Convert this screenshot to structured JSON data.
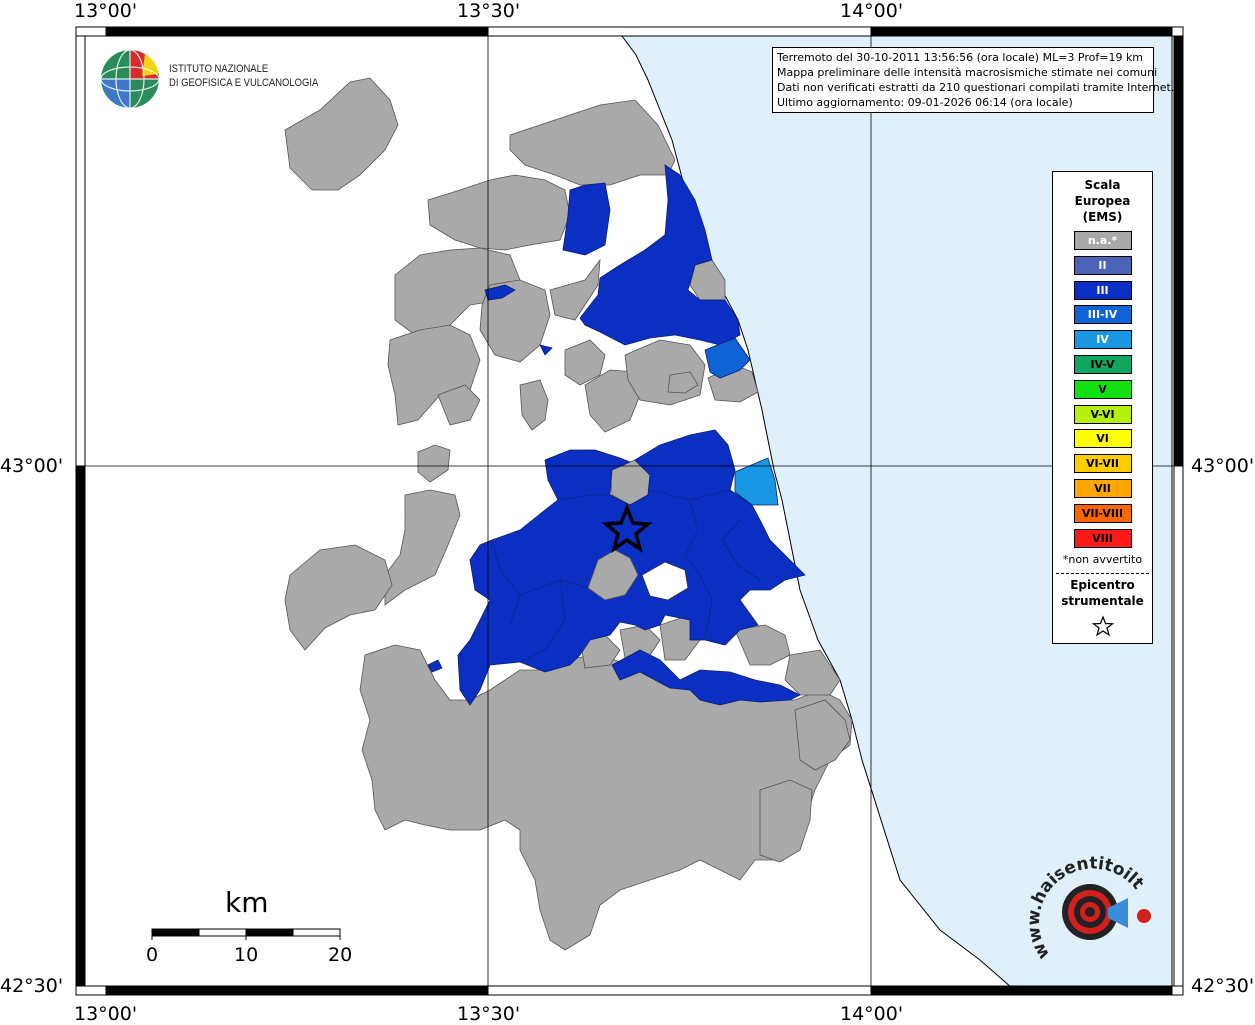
{
  "map": {
    "coordinates": {
      "top": [
        "13°00'",
        "13°30'",
        "14°00'"
      ],
      "bottom": [
        "13°00'",
        "13°30'",
        "14°00'"
      ],
      "left": [
        "43°00'",
        "42°30'"
      ],
      "right": [
        "43°00'",
        "42°30'"
      ]
    },
    "colors": {
      "sea": "#dff0fb",
      "na": "#a9a9a9",
      "intensity_III": "#0a2fc2",
      "intensity_III_IV": "#0f63d6",
      "intensity_IV": "#1a97e2"
    }
  },
  "info_box": {
    "lines": [
      "Terremoto del 30-10-2011 13:56:56 (ora locale) ML=3 Prof=19 km",
      "Mappa preliminare delle intensità macrosismiche stimate nei comuni",
      "Dati non verificati estratti da 210 questionari compilati tramite Internet.",
      "Ultimo aggiornamento: 09-01-2026 06:14 (ora locale)"
    ]
  },
  "logo": {
    "line1": "ISTITUTO NAZIONALE",
    "line2": "DI GEOFISICA E VULCANOLOGIA"
  },
  "legend": {
    "title": "Scala Europea (EMS)",
    "items": [
      {
        "label": "n.a.*",
        "color": "#a9a9a9"
      },
      {
        "label": "II",
        "color": "#4b63b8"
      },
      {
        "label": "III",
        "color": "#0a2fc2"
      },
      {
        "label": "III-IV",
        "color": "#0f63d6"
      },
      {
        "label": "IV",
        "color": "#1a97e2"
      },
      {
        "label": "IV-V",
        "color": "#0fa760"
      },
      {
        "label": "V",
        "color": "#11e011"
      },
      {
        "label": "V-VI",
        "color": "#b6f00c"
      },
      {
        "label": "VI",
        "color": "#ffff00"
      },
      {
        "label": "VI-VII",
        "color": "#ffcc00"
      },
      {
        "label": "VII",
        "color": "#ffa500"
      },
      {
        "label": "VII-VIII",
        "color": "#ff6600"
      },
      {
        "label": "VIII",
        "color": "#ff1a1a"
      }
    ],
    "note": "*non avvertito",
    "epicenter": "Epicentro strumentale"
  },
  "scale_bar": {
    "unit": "km",
    "ticks": [
      "0",
      "10",
      "20"
    ]
  },
  "watermark": {
    "text": "www.haisentitoilterremoto.it"
  }
}
